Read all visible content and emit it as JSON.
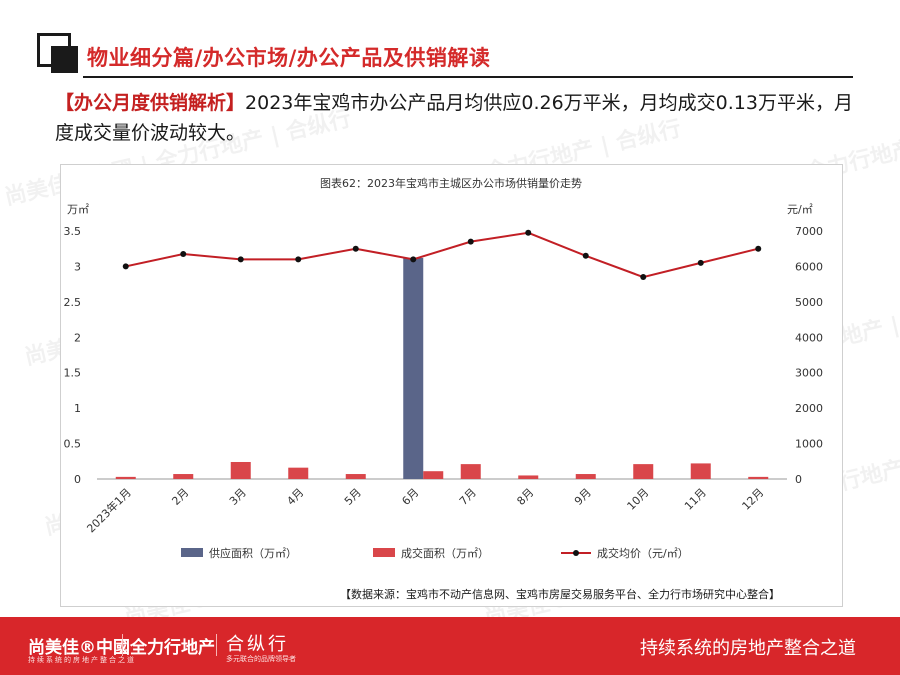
{
  "header": {
    "title": "物业细分篇/办公市场/办公产品及供销解读"
  },
  "summary": {
    "tag": "【办公月度供销解析】",
    "text": "2023年宝鸡市办公产品月均供应0.26万平米，月均成交0.13万平米，月度成交量价波动较大。"
  },
  "chart_data": {
    "type": "bar",
    "title": "图表62：2023年宝鸡市主城区办公市场供销量价走势",
    "categories": [
      "2023年1月",
      "2月",
      "3月",
      "4月",
      "5月",
      "6月",
      "7月",
      "8月",
      "9月",
      "10月",
      "11月",
      "12月"
    ],
    "y_left_unit": "万㎡",
    "y_right_unit": "元/㎡",
    "y_left_ticks": [
      "0",
      "0.5",
      "1",
      "1.5",
      "2",
      "2.5",
      "3",
      "3.5"
    ],
    "y_right_ticks": [
      "0",
      "1000",
      "2000",
      "3000",
      "4000",
      "5000",
      "6000",
      "7000"
    ],
    "ylim_left": [
      0,
      3.5
    ],
    "ylim_right": [
      0,
      7000
    ],
    "series": [
      {
        "name": "供应面积（万㎡）",
        "type": "bar",
        "axis": "left",
        "color": "#5a6589",
        "values": [
          0,
          0,
          0,
          0,
          0,
          3.12,
          0,
          0,
          0,
          0,
          0,
          0
        ]
      },
      {
        "name": "成交面积（万㎡）",
        "type": "bar",
        "axis": "left",
        "color": "#d9464a",
        "values": [
          0.03,
          0.07,
          0.24,
          0.16,
          0.07,
          0.11,
          0.21,
          0.05,
          0.07,
          0.21,
          0.22,
          0.03
        ]
      },
      {
        "name": "成交均价（元/㎡）",
        "type": "line",
        "axis": "right",
        "color": "#c21f25",
        "values": [
          6000,
          6350,
          6200,
          6200,
          6500,
          6200,
          6700,
          6950,
          6300,
          5700,
          6100,
          6500
        ]
      }
    ],
    "grid": false,
    "legend": "bottom"
  },
  "source": {
    "text": "【数据来源：宝鸡市不动产信息网、宝鸡市房屋交易服务平台、全力行市场研究中心整合】"
  },
  "footer": {
    "brand1": "尚美佳®中國",
    "brand1_sub": "持续系统的房地产整合之道",
    "brand2": "全力行地产",
    "brand3": "合纵行",
    "brand3_sub": "多元联合的品牌领导者",
    "slogan": "持续系统的房地产整合之道",
    "color": "#d8262a"
  },
  "watermark": {
    "text": "尚美佳®中國 | 全力行地产 | 合纵行"
  }
}
